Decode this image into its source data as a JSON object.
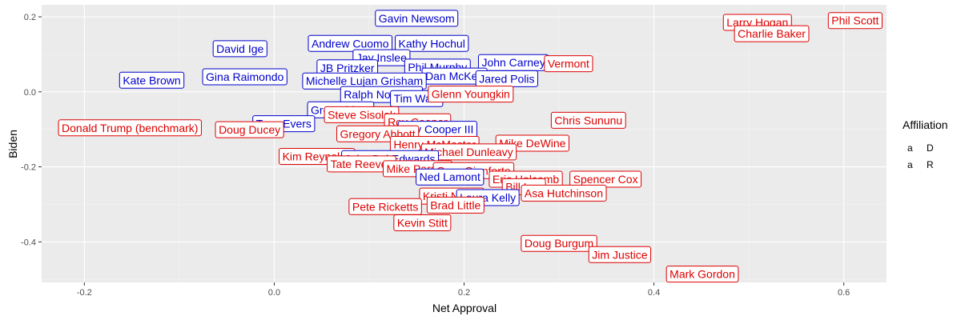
{
  "chart_data": {
    "type": "scatter",
    "xlabel": "Net Approval",
    "ylabel": "Biden",
    "xlim": [
      -0.245,
      0.645
    ],
    "ylim": [
      -0.508,
      0.232
    ],
    "x_ticks": [
      -0.2,
      0.0,
      0.2,
      0.4,
      0.6
    ],
    "x_tick_labels": [
      "-0.2",
      "0.0",
      "0.2",
      "0.4",
      "0.6"
    ],
    "y_ticks": [
      0.2,
      0.0,
      -0.2,
      -0.4
    ],
    "y_tick_labels": [
      "0.2",
      "0.0",
      "-0.2",
      "-0.4"
    ],
    "grid": true,
    "legend": {
      "title": "Affiliation",
      "position": "right",
      "entries": [
        {
          "key": "a",
          "label": "D",
          "color": "#0000cc"
        },
        {
          "key": "a",
          "label": "R",
          "color": "#dd0000"
        }
      ]
    },
    "colors": {
      "D": "#0000cc",
      "R": "#dd0000",
      "panel": "#ebebeb",
      "grid_major": "#ffffff",
      "grid_minor": "#f5f5f5"
    },
    "points": [
      {
        "label": "Gavin Newsom",
        "x": 0.15,
        "y": 0.196,
        "party": "D"
      },
      {
        "label": "Andrew Cuomo",
        "x": 0.08,
        "y": 0.129,
        "party": "D"
      },
      {
        "label": "Kathy Hochul",
        "x": 0.166,
        "y": 0.129,
        "party": "D"
      },
      {
        "label": "David Ige",
        "x": -0.036,
        "y": 0.115,
        "party": "D"
      },
      {
        "label": "Jay Inslee",
        "x": 0.113,
        "y": 0.091,
        "party": "D"
      },
      {
        "label": "John Carney",
        "x": 0.252,
        "y": 0.078,
        "party": "D"
      },
      {
        "label": "Phil Murphy",
        "x": 0.172,
        "y": 0.066,
        "party": "D"
      },
      {
        "label": "JB Pritzker",
        "x": 0.077,
        "y": 0.064,
        "party": "D"
      },
      {
        "label": "Vermont",
        "x": 0.31,
        "y": 0.075,
        "party": "R"
      },
      {
        "label": "Dan McKee",
        "x": 0.19,
        "y": 0.042,
        "party": "D"
      },
      {
        "label": "Jared Polis",
        "x": 0.245,
        "y": 0.035,
        "party": "D"
      },
      {
        "label": "Kate Brown",
        "x": -0.129,
        "y": 0.031,
        "party": "D"
      },
      {
        "label": "Gina Raimondo",
        "x": -0.031,
        "y": 0.04,
        "party": "D"
      },
      {
        "label": "Michelle Lujan Grisham",
        "x": 0.095,
        "y": 0.029,
        "party": "D"
      },
      {
        "label": "Ralph Northam",
        "x": 0.113,
        "y": -0.007,
        "party": "D"
      },
      {
        "label": "Tim Walz",
        "x": 0.15,
        "y": -0.018,
        "party": "D"
      },
      {
        "label": "Glenn Youngkin",
        "x": 0.207,
        "y": -0.006,
        "party": "R"
      },
      {
        "label": "Greg Abbott",
        "x": 0.07,
        "y": -0.048,
        "party": "D"
      },
      {
        "label": "Steve Sisolak",
        "x": 0.092,
        "y": -0.061,
        "party": "R"
      },
      {
        "label": "Chris Sununu",
        "x": 0.331,
        "y": -0.076,
        "party": "R"
      },
      {
        "label": "Roy Cooper",
        "x": 0.151,
        "y": -0.08,
        "party": "R"
      },
      {
        "label": "Tony Evers",
        "x": 0.01,
        "y": -0.085,
        "party": "D"
      },
      {
        "label": "Roy Cooper III",
        "x": 0.172,
        "y": -0.1,
        "party": "D"
      },
      {
        "label": "Donald Trump (benchmark)",
        "x": -0.152,
        "y": -0.096,
        "party": "R"
      },
      {
        "label": "Doug Ducey",
        "x": -0.026,
        "y": -0.101,
        "party": "R"
      },
      {
        "label": "Gregory Abbott",
        "x": 0.109,
        "y": -0.112,
        "party": "R"
      },
      {
        "label": "Mike DeWine",
        "x": 0.272,
        "y": -0.137,
        "party": "R"
      },
      {
        "label": "Henry McMaster",
        "x": 0.169,
        "y": -0.14,
        "party": "R"
      },
      {
        "label": "Michael Dunleavy",
        "x": 0.205,
        "y": -0.16,
        "party": "R"
      },
      {
        "label": "Kim Reynolds",
        "x": 0.045,
        "y": -0.172,
        "party": "R"
      },
      {
        "label": "John Bel Edwards",
        "x": 0.122,
        "y": -0.178,
        "party": "D"
      },
      {
        "label": "Tate Reeves",
        "x": 0.092,
        "y": -0.192,
        "party": "R"
      },
      {
        "label": "Mike Parson",
        "x": 0.151,
        "y": -0.205,
        "party": "R"
      },
      {
        "label": "Greg Gianforte",
        "x": 0.21,
        "y": -0.21,
        "party": "R"
      },
      {
        "label": "Ned Lamont",
        "x": 0.185,
        "y": -0.227,
        "party": "D"
      },
      {
        "label": "Eric Holcomb",
        "x": 0.265,
        "y": -0.233,
        "party": "R"
      },
      {
        "label": "Spencer Cox",
        "x": 0.349,
        "y": -0.233,
        "party": "R"
      },
      {
        "label": "Bill Lee",
        "x": 0.263,
        "y": -0.253,
        "party": "R"
      },
      {
        "label": "Asa Hutchinson",
        "x": 0.305,
        "y": -0.27,
        "party": "R"
      },
      {
        "label": "Kristi Noem",
        "x": 0.187,
        "y": -0.278,
        "party": "R"
      },
      {
        "label": "Laura Kelly",
        "x": 0.225,
        "y": -0.282,
        "party": "D"
      },
      {
        "label": "Pete Ricketts",
        "x": 0.117,
        "y": -0.306,
        "party": "R"
      },
      {
        "label": "Brad Little",
        "x": 0.191,
        "y": -0.302,
        "party": "R"
      },
      {
        "label": "Kevin Stitt",
        "x": 0.156,
        "y": -0.349,
        "party": "R"
      },
      {
        "label": "Doug Burgum",
        "x": 0.3,
        "y": -0.404,
        "party": "R"
      },
      {
        "label": "Jim Justice",
        "x": 0.364,
        "y": -0.434,
        "party": "R"
      },
      {
        "label": "Mark Gordon",
        "x": 0.451,
        "y": -0.486,
        "party": "R"
      },
      {
        "label": "Larry Hogan",
        "x": 0.509,
        "y": 0.185,
        "party": "R"
      },
      {
        "label": "Charlie Baker",
        "x": 0.524,
        "y": 0.155,
        "party": "R"
      },
      {
        "label": "Phil Scott",
        "x": 0.612,
        "y": 0.19,
        "party": "R"
      }
    ]
  }
}
